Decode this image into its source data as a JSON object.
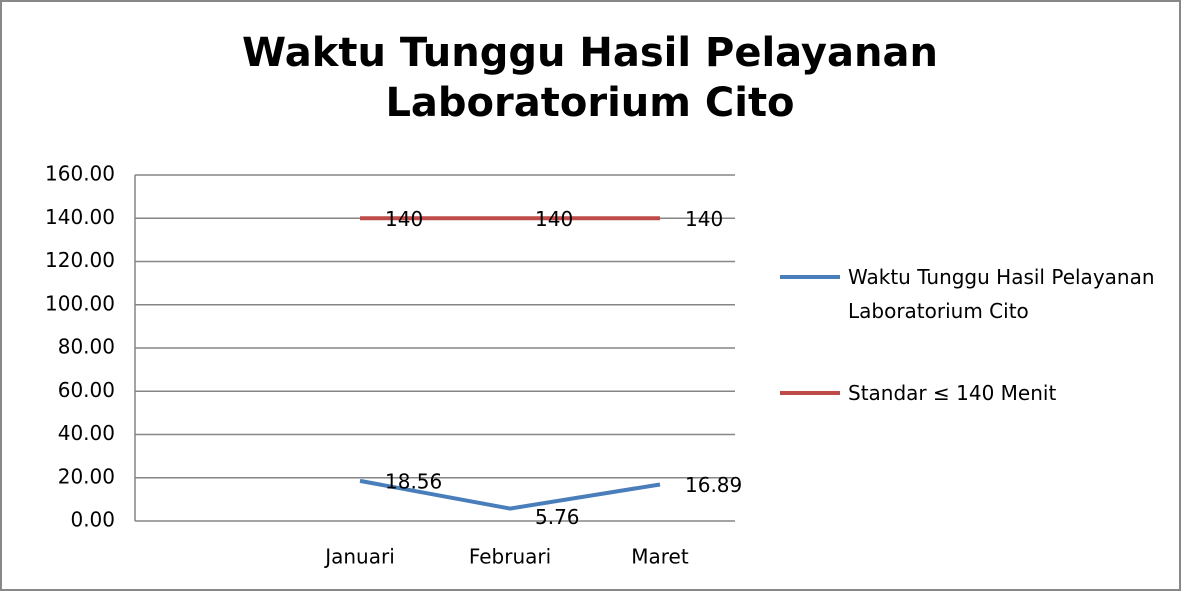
{
  "chart_data": {
    "type": "line",
    "title": "Waktu Tunggu Hasil Pelayanan Laboratorium Cito",
    "categories": [
      null,
      "Januari",
      "Februari",
      "Maret"
    ],
    "series": [
      {
        "name": "Waktu Tunggu Hasil Pelayanan Laboratorium Cito",
        "color": "#4a7ebb",
        "values": [
          null,
          18.56,
          5.76,
          16.89
        ]
      },
      {
        "name": "Standar  ≤ 140 Menit",
        "color": "#be4b48",
        "values": [
          null,
          140,
          140,
          140
        ]
      }
    ],
    "ylim": [
      0,
      160
    ],
    "yticks": [
      {
        "value": 0,
        "label": "0.00"
      },
      {
        "value": 20,
        "label": "20.00"
      },
      {
        "value": 40,
        "label": "40.00"
      },
      {
        "value": 60,
        "label": "60.00"
      },
      {
        "value": 80,
        "label": "80.00"
      },
      {
        "value": 100,
        "label": "100.00"
      },
      {
        "value": 120,
        "label": "120.00"
      },
      {
        "value": 140,
        "label": "140.00"
      },
      {
        "value": 160,
        "label": "160.00"
      }
    ],
    "grid": true,
    "legend": "right"
  }
}
